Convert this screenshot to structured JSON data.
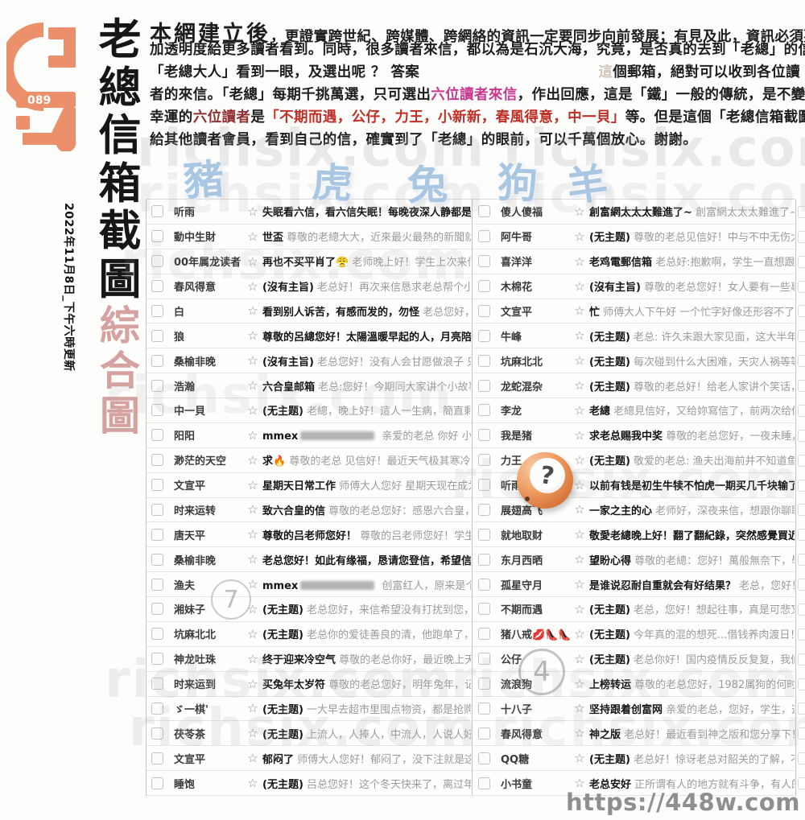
{
  "sidebar": {
    "logo_number": "089",
    "title_chars": [
      "老",
      "總",
      "信",
      "箱",
      "截",
      "圖"
    ],
    "subtitle_chars": [
      "綜",
      "合",
      "圖"
    ],
    "date_note": "2022年11月8日_下午六時更新"
  },
  "header": {
    "lines": [
      [
        {
          "t": "本網建立後",
          "s": "big"
        },
        {
          "t": "，更證實跨世紀、跨媒體、跨網絡的資訊一定要同步向前發展；有見及此，資訊必須要更快、更",
          "s": "n"
        }
      ],
      [
        {
          "t": "加透明度給更多讀者看到。同時，很多讀者來信，都以為是石沉大海，究竟，是否真的去到「老總」的信箱呢 ？ 令",
          "s": "n"
        }
      ],
      [
        {
          "t": "「老總大人」看到一眼，及選出呢 ？ 答案",
          "s": "n"
        },
        {
          "t": "",
          "s": "gap"
        },
        {
          "t": "這",
          "s": "faint"
        },
        {
          "t": "個郵箱，絕對可以收到各位讀",
          "s": "n"
        }
      ],
      [
        {
          "t": "者的來信。「老總」每期千挑萬選，只可選出",
          "s": "n"
        },
        {
          "t": "六位讀者來信",
          "s": "pink"
        },
        {
          "t": "，作出回應，這是「鐵」一般的傳統，是不變的。今期特別",
          "s": "n"
        }
      ],
      [
        {
          "t": "幸運的",
          "s": "n"
        },
        {
          "t": "六位讀者",
          "s": "darkred"
        },
        {
          "t": "是",
          "s": "n"
        },
        {
          "t": "「不期而遇，公仔，力王，小新新，春風得意，中一貝」",
          "s": "red"
        },
        {
          "t": "等。但是這個「老總信箱截圖」的位置，亦可",
          "s": "n"
        }
      ],
      [
        {
          "t": "給其他讀者會員，看到自己的信，確實到了「老總」的眼前，可以千萬個放心。謝謝。",
          "s": "n"
        }
      ]
    ]
  },
  "zodiac": [
    "豬",
    "虎",
    "兔",
    "狗",
    "羊"
  ],
  "watermark": {
    "text": "richsix.com"
  },
  "icons": {
    "star": "☆"
  },
  "badges": {
    "circled_number_left": "7",
    "circled_number_right": "4",
    "question_ball": "?"
  },
  "footer": {
    "url": "https://448w.com"
  },
  "mail": {
    "left": [
      {
        "n": "听雨",
        "s": "失眠看六信，看六信失眠！每晚夜深人静都是思考特碼的時間！",
        "p": ""
      },
      {
        "n": "動中生財",
        "s": "世盃",
        "p": "尊敬的老總大大，近來最火最熱的新聞就是北京時間2022"
      },
      {
        "n": "00年属龙读者",
        "s": "再也不买平肖了😤",
        "p": "老师晚上好！学生上次来信说买了一千块输"
      },
      {
        "n": "春风得意",
        "s": "(沒有主旨)",
        "p": "老总好！再次来信恳求老总帮个小忙！今天和好久不"
      },
      {
        "n": "白",
        "s": "看到别人诉苦，有感而发的，勿怪",
        "p": "老总您好，最近看到好多人"
      },
      {
        "n": "狼",
        "s": "尊敬的呂總您好！太陽溫暖早起的人，月亮陪伴熬夜的人，弟子",
        "p": ""
      },
      {
        "n": "桑榆非晚",
        "s": "(沒有主旨)",
        "p": "老总您好！没有人会甘愿做浪子 只是找不到归宿 无"
      },
      {
        "n": "浩瀚",
        "s": "六合皇邮箱",
        "p": "老总:您好！今期同大家讲个小故事，话说有个人拿"
      },
      {
        "n": "中一貝",
        "s": "(无主题)",
        "p": "老總，晚上好！這人一生病，簡直剩下半條命，有氣無"
      },
      {
        "n": "阳阳",
        "s": "mmex",
        "r": true,
        "p": "亲爱的老总 你好 小女来向你讨个好"
      },
      {
        "n": "渺茫的天空",
        "s": "求🔥",
        "p": "尊敬的老总 见信好！最近天气极其寒冷，有如群友们的中"
      },
      {
        "n": "文宣平",
        "s": "星期天日常工作",
        "p": "师傅大人您好 星期天现在成为日常工作日，中"
      },
      {
        "n": "时来运转",
        "s": "致六合皇的信",
        "p": "尊敬的老总您好：感恩六合皇，上次（11元）买"
      },
      {
        "n": "唐天平",
        "s": "尊敬的吕老师您好！",
        "p": "尊敬的吕老师您好！学生昨晚的泪水忧在"
      },
      {
        "n": "桑榆非晚",
        "s": "老总您好！如此有缘福，恳请您登信，希望信中缘码能有福运！",
        "p": ""
      },
      {
        "n": "渔夫",
        "s": "mmex",
        "r": true,
        "p": "创富红人，原来是个黑庄，真好"
      },
      {
        "n": "湘妹子",
        "s": "(无主题)",
        "p": "老总您好，来信希望没有打扰到您，2022年马上要过去"
      },
      {
        "n": "坑麻北北",
        "s": "(无主题)",
        "p": "老总你的爱徒善良的清，他跑单了，哈哈哈！兄弟我"
      },
      {
        "n": "神龙吐珠",
        "s": "终于迎来冷空气",
        "p": "尊敬的老总你好，最近晚上天气转凉了，可要"
      },
      {
        "n": "时来运到",
        "s": "买兔年太岁符",
        "p": "尊敬的老总您好，明年兔年，记得老总老总说过"
      },
      {
        "n": "ゞ一棋'",
        "s": "(无主题)",
        "p": "一大早去超市里囤点物资，都是抢购啊，人心惶惶啊"
      },
      {
        "n": "茯苓茶",
        "s": "(无主题)",
        "p": "上流人，人捧人，中流人，人说人好，下流人，拉低"
      },
      {
        "n": "文宣平",
        "s": "郁闷了",
        "p": "师傅大人您好！郁闷了，没下注就是这样准确，刚刚才"
      },
      {
        "n": "睡饱",
        "s": "(无主题)",
        "p": "吕总您好！这个冬天快来了，离过年又不到二个月了"
      }
    ],
    "right": [
      {
        "n": "傻人傻福",
        "s": "創富網太太太難進了~",
        "p": "創富網太太太難進了~"
      },
      {
        "n": "阿牛哥",
        "s": "(无主题)",
        "p": "尊敬的老总见信好！中与不中无伤大雅，玩玩就好"
      },
      {
        "n": "喜洋洋",
        "s": "老鸡電郵信箱",
        "p": "老总好:抱歉啊，学生一直想跟您交流但又不想"
      },
      {
        "n": "木棉花",
        "s": "(沒有主旨)",
        "p": "尊敬的老总您好！女人要有一些專屬於自己的興"
      },
      {
        "n": "文宣平",
        "s": "忙",
        "p": "师傅大人下午好 一个忙字好像还形容不了自己的情况，这"
      },
      {
        "n": "牛峰",
        "s": "(无主题)",
        "p": "老总: 许久未跟大家见面，这大半年来老总过的好吗"
      },
      {
        "n": "坑麻北北",
        "s": "(无主题)",
        "p": "每次碰到什么大困难，天灾人祸等等，总是第一反应"
      },
      {
        "n": "龙蛇混杂",
        "s": "(无主题)",
        "p": "尊敬的老总好！给老人家讲个笑话，有个男孩被妈"
      },
      {
        "n": "李龙",
        "s": "老總",
        "p": "老總見信好，又给妳寫信了，前两次给你写信时2019年"
      },
      {
        "n": "我是猪",
        "s": "求老总赐我中奖",
        "p": "尊敬的老总您好，一夜未睡，回想这段时间"
      },
      {
        "n": "力王",
        "s": "(无主题)",
        "p": "敬爱的老总: 渔夫出海前并不知道鱼在哪儿，但还是"
      },
      {
        "n": "听雨",
        "s": "以前有钱是初生牛犊不怕虎一期买几千块输了也不会觉得心疼",
        "p": ""
      },
      {
        "n": "展翅高飞",
        "s": "一家之主的心",
        "p": "老师好，深夜来信，想跟你聊聊心里话，可好"
      },
      {
        "n": "就地取财",
        "s": "敬愛老總晚上好！翻了翻紀錄，突然感覺買近十期的特肖贏的",
        "p": ""
      },
      {
        "n": "东月西晒",
        "s": "望盼心得",
        "p": "尊敬的老總：您好！萬般無奈下，學生前來求取真"
      },
      {
        "n": "孤星守月",
        "s": "是谁说忍耐自重就会有好结果？",
        "p": "老总，您好！突然间，我很"
      },
      {
        "n": "不期而遇",
        "s": "(无主题)",
        "p": "老总，您好！想起往事，真是可悲又可叹，还可气"
      },
      {
        "n": "猪八戒💋👠👠",
        "s": "(无主题)",
        "p": "今年真的混的想死...借钱养肉渡日！！！"
      },
      {
        "n": "公仔",
        "s": "(无主题)",
        "p": "老总你好！国内疫情反反复复，我们县核酸检测发现"
      },
      {
        "n": "流浪狗",
        "s": "上榜转运",
        "p": "尊敬的老总您好，1982属狗的何时走好运，这段时"
      },
      {
        "n": "十八子",
        "s": "坚持跟着创富网",
        "p": "亲爱的老总，您好，学生，这段时间感觉做"
      },
      {
        "n": "春风得意",
        "s": "神之版",
        "p": "老总好！最近看到神之版和您分享下！子鼠自由之神"
      },
      {
        "n": "QQ糖",
        "s": "(无主题)",
        "p": "老总好！惊讶老总对韶关的了解，不知老总到过韶"
      },
      {
        "n": "小书童",
        "s": "老总安好",
        "p": "正所谓有人的地方就有斗争，有人的地方就离不开"
      }
    ]
  }
}
